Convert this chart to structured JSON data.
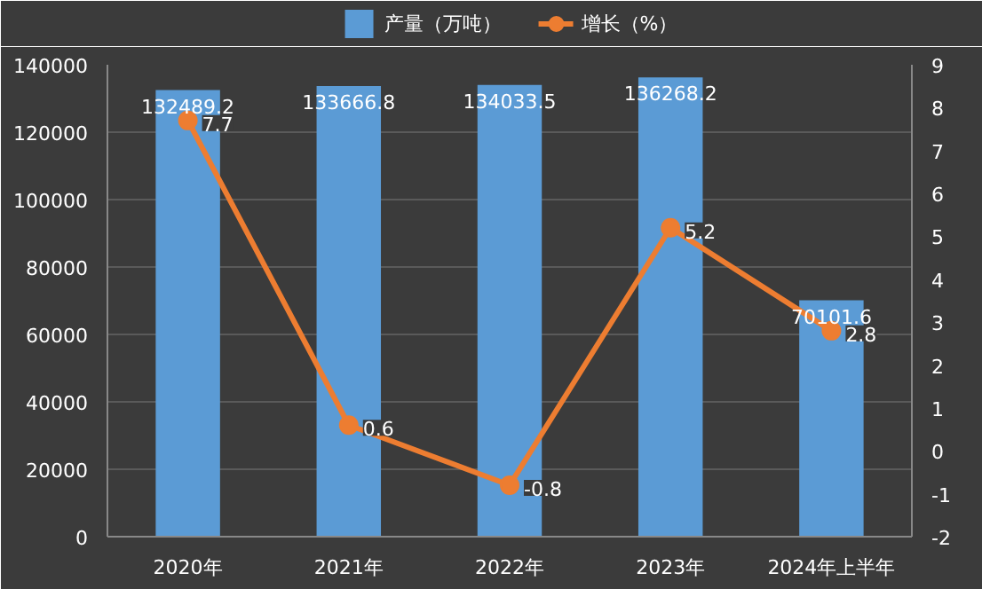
{
  "chart_data": {
    "type": "bar",
    "categories": [
      "2020年",
      "2021年",
      "2022年",
      "2023年",
      "2024年上半年"
    ],
    "series": [
      {
        "name": "产量（万吨）",
        "color": "#5b9bd5",
        "values": [
          132489.2,
          133666.8,
          134033.5,
          136268.2,
          70101.6
        ]
      },
      {
        "name": "增长（%）",
        "type": "line",
        "axis": "y2",
        "color": "#ed7d31",
        "values": [
          7.7,
          0.6,
          -0.8,
          5.2,
          2.8
        ],
        "marker": "circle"
      }
    ],
    "ylim": [
      0,
      140000
    ],
    "yticks": [
      0,
      20000,
      40000,
      60000,
      80000,
      100000,
      120000,
      140000
    ],
    "y2lim": [
      -2,
      9
    ],
    "y2ticks": [
      -2,
      -1,
      0,
      1,
      2,
      3,
      4,
      5,
      6,
      7,
      8,
      9
    ],
    "grid": "y",
    "legend": "top",
    "data_labels": true
  }
}
